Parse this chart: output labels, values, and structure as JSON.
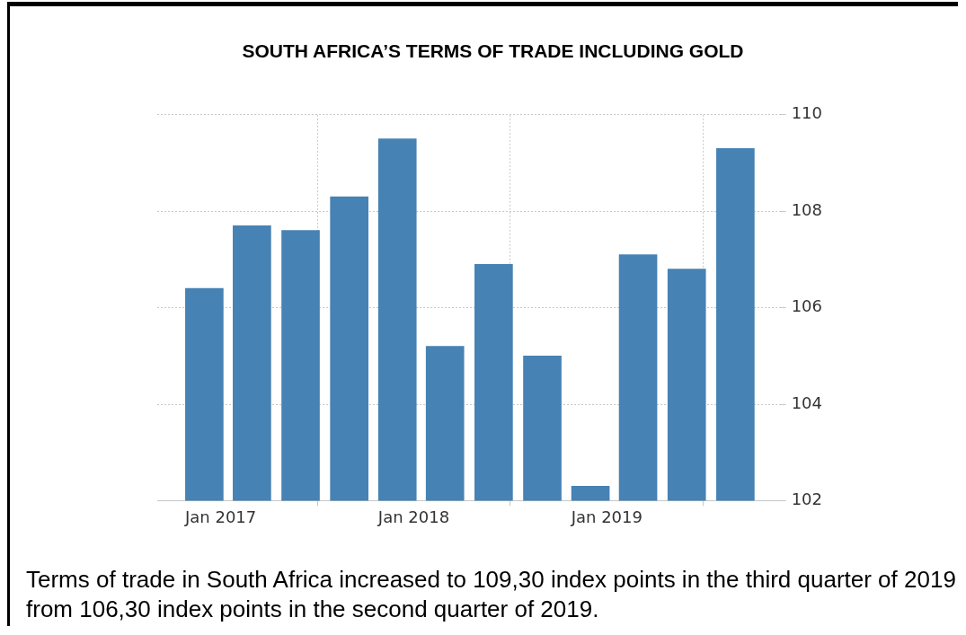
{
  "chart_data": {
    "type": "bar",
    "title": "SOUTH AFRICA’S TERMS OF TRADE INCLUDING GOLD",
    "x": [
      "2016-12",
      "2017-03",
      "2017-06",
      "2017-09",
      "2017-12",
      "2018-03",
      "2018-06",
      "2018-09",
      "2018-12",
      "2019-03",
      "2019-06",
      "2019-09"
    ],
    "values": [
      106.4,
      107.7,
      107.6,
      108.3,
      109.5,
      105.2,
      106.9,
      105.0,
      102.3,
      107.1,
      106.8,
      109.3
    ],
    "color": "#4682b4",
    "xlim": [
      "2016-09-03",
      "2019-11-22"
    ],
    "xticks": [
      {
        "value": "2017-01",
        "label": "Jan 2017"
      },
      {
        "value": "2018-01",
        "label": "Jan 2018"
      },
      {
        "value": "2019-01",
        "label": "Jan 2019"
      }
    ],
    "ylim": [
      102,
      110
    ],
    "yticks": [
      102,
      104,
      106,
      108,
      110
    ],
    "grid": true,
    "annotations": [
      "Terms of trade in South Africa increased to 109,30 index points in the third quarter of 2019 from 106,30 index points in the second quarter of 2019."
    ]
  }
}
